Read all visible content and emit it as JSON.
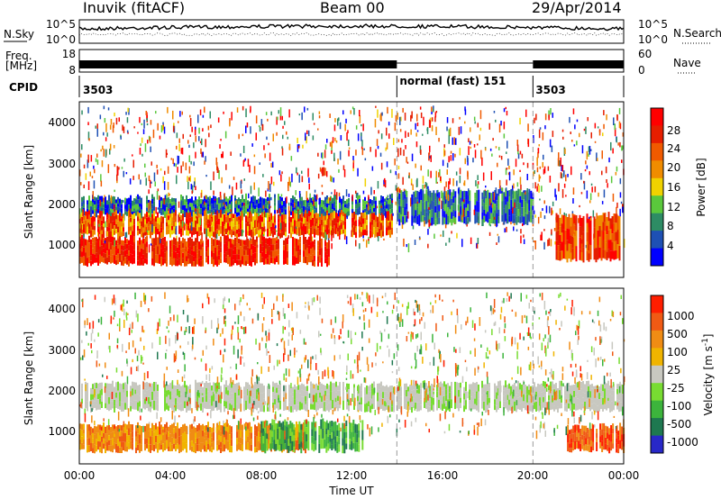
{
  "header": {
    "station": "Inuvik (fitACF)",
    "beam": "Beam 00",
    "date": "29/Apr/2014"
  },
  "nsky_panel": {
    "left_label": "N.Sky",
    "right_label": "N.Search",
    "ticks_left": [
      "10^5",
      "10^0"
    ],
    "ticks_right": [
      "10^5",
      "10^0"
    ]
  },
  "freq_panel": {
    "left_label_1": "Freq.",
    "left_label_2": "[MHz]",
    "right_label": "Nave",
    "ticks_left": [
      "18",
      "8"
    ],
    "ticks_right": [
      "60",
      "0"
    ]
  },
  "cpid_panel": {
    "label": "CPID",
    "segments": [
      {
        "text": "3503",
        "start_hour": 0
      },
      {
        "text": "normal (fast) 151",
        "start_hour": 14
      },
      {
        "text": "3503",
        "start_hour": 20
      }
    ]
  },
  "power_panel": {
    "ylabel": "Slant Range [km]",
    "yticks": [
      "4000",
      "3000",
      "2000",
      "1000"
    ],
    "colorbar_label": "Power [dB]",
    "colorbar_ticks": [
      "28",
      "24",
      "20",
      "16",
      "12",
      "8",
      "4"
    ]
  },
  "velocity_panel": {
    "ylabel": "Slant Range [km]",
    "yticks": [
      "4000",
      "3000",
      "2000",
      "1000"
    ],
    "colorbar_label_main": "Velocity [m s",
    "colorbar_label_sup": "-1",
    "colorbar_label_end": "]",
    "colorbar_ticks": [
      "1000",
      "500",
      "100",
      "25",
      "-25",
      "-100",
      "-500",
      "-1000"
    ]
  },
  "xaxis": {
    "label": "Time UT",
    "ticks": [
      "00:00",
      "04:00",
      "08:00",
      "12:00",
      "16:00",
      "20:00",
      "00:00"
    ]
  },
  "colors": {
    "power_scale": [
      "#0000ff",
      "#1e50b4",
      "#2d8c64",
      "#5ac83c",
      "#f0d200",
      "#f08c00",
      "#f05a00",
      "#e61e00",
      "#ff0000"
    ],
    "velocity_scale": [
      "#2828c8",
      "#1e7850",
      "#3cb43c",
      "#78dc32",
      "#c8c8c0",
      "#f0b400",
      "#f08c14",
      "#f05a14",
      "#ff1e00"
    ]
  },
  "chart_data": {
    "type": "heatmap",
    "x_range_hours": [
      0,
      24
    ],
    "y_range_km": [
      180,
      4500
    ],
    "panels": [
      {
        "name": "Power",
        "bands": [
          {
            "t0": 0,
            "t1": 13.8,
            "r0": 1700,
            "r1": 2150,
            "level": "blue-green"
          },
          {
            "t0": 0,
            "t1": 13.8,
            "r0": 1200,
            "r1": 1750,
            "level": "orange-red"
          },
          {
            "t0": 0,
            "t1": 11,
            "r0": 500,
            "r1": 1150,
            "level": "red"
          },
          {
            "t0": 14,
            "t1": 20,
            "r0": 1500,
            "r1": 2300,
            "level": "green-blue"
          },
          {
            "t0": 21,
            "t1": 24,
            "r0": 600,
            "r1": 1700,
            "level": "red-orange"
          }
        ]
      },
      {
        "name": "Velocity",
        "bands": [
          {
            "t0": 0,
            "t1": 24,
            "r0": 1500,
            "r1": 2150,
            "level": "grey"
          },
          {
            "t0": 0,
            "t1": 10,
            "r0": 500,
            "r1": 1150,
            "level": "orange"
          },
          {
            "t0": 8,
            "t1": 12.5,
            "r0": 500,
            "r1": 1200,
            "level": "green"
          },
          {
            "t0": 21.5,
            "t1": 24,
            "r0": 500,
            "r1": 1100,
            "level": "orange-red"
          }
        ]
      }
    ]
  }
}
